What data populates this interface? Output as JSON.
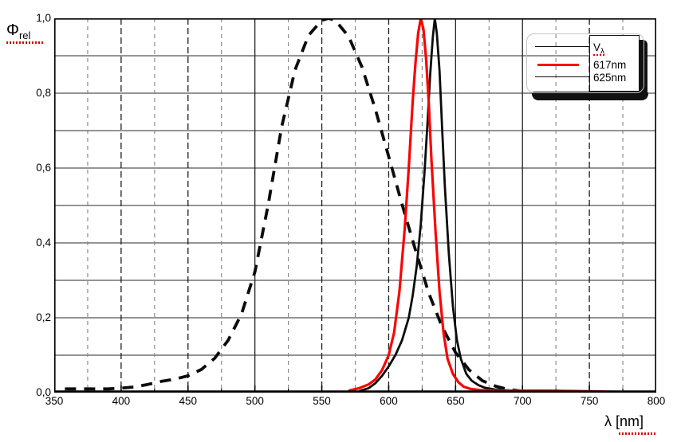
{
  "chart_data": {
    "type": "line",
    "title": "",
    "xlabel": "λ [nm]",
    "ylabel": "Φrel",
    "xlim": [
      350,
      800
    ],
    "ylim": [
      0.0,
      1.0
    ],
    "grid_on": true,
    "y_gridlines_every": 0.1,
    "x_gridlines_every_nm": 25,
    "legend_position": "top-right",
    "x_tick_labels": [
      "350",
      "400",
      "450",
      "500",
      "550",
      "600",
      "650",
      "700",
      "750",
      "800"
    ],
    "x_major_ticks": [
      350,
      400,
      450,
      500,
      550,
      600,
      650,
      700,
      750,
      800
    ],
    "y_tick_labels": [
      "1,0",
      "0,8",
      "0,6",
      "0,4",
      "0,2",
      "0,0"
    ],
    "y_ticks": [
      1.0,
      0.8,
      0.6,
      0.4,
      0.2,
      0.0
    ],
    "vline_styles": [
      {
        "lambda": 375,
        "style": "minor"
      },
      {
        "lambda": 400,
        "style": "major"
      },
      {
        "lambda": 425,
        "style": "minor"
      },
      {
        "lambda": 450,
        "style": "major"
      },
      {
        "lambda": 475,
        "style": "minor"
      },
      {
        "lambda": 500,
        "style": "solid"
      },
      {
        "lambda": 525,
        "style": "minor"
      },
      {
        "lambda": 550,
        "style": "major"
      },
      {
        "lambda": 575,
        "style": "minor"
      },
      {
        "lambda": 600,
        "style": "major"
      },
      {
        "lambda": 625,
        "style": "minor"
      },
      {
        "lambda": 650,
        "style": "solid"
      },
      {
        "lambda": 675,
        "style": "minor"
      },
      {
        "lambda": 700,
        "style": "solid"
      },
      {
        "lambda": 725,
        "style": "minor"
      },
      {
        "lambda": 750,
        "style": "major"
      },
      {
        "lambda": 775,
        "style": "minor"
      }
    ],
    "series": [
      {
        "name": "V_lambda",
        "legend_label": "Vλ",
        "color": "#0c0c0c",
        "line_style": "dashed",
        "line_width": 3.8,
        "peak_nm": 555,
        "points": [
          [
            358,
            0.01
          ],
          [
            370,
            0.01
          ],
          [
            380,
            0.01
          ],
          [
            390,
            0.01
          ],
          [
            400,
            0.012
          ],
          [
            410,
            0.015
          ],
          [
            420,
            0.022
          ],
          [
            430,
            0.03
          ],
          [
            440,
            0.036
          ],
          [
            450,
            0.045
          ],
          [
            460,
            0.062
          ],
          [
            470,
            0.092
          ],
          [
            480,
            0.14
          ],
          [
            490,
            0.21
          ],
          [
            500,
            0.323
          ],
          [
            510,
            0.503
          ],
          [
            520,
            0.71
          ],
          [
            530,
            0.862
          ],
          [
            540,
            0.954
          ],
          [
            550,
            0.995
          ],
          [
            555,
            1.0
          ],
          [
            560,
            0.995
          ],
          [
            570,
            0.952
          ],
          [
            580,
            0.87
          ],
          [
            590,
            0.757
          ],
          [
            600,
            0.631
          ],
          [
            610,
            0.503
          ],
          [
            620,
            0.381
          ],
          [
            630,
            0.265
          ],
          [
            640,
            0.175
          ],
          [
            650,
            0.107
          ],
          [
            660,
            0.061
          ],
          [
            670,
            0.032
          ],
          [
            680,
            0.017
          ],
          [
            690,
            0.008
          ],
          [
            700,
            0.004
          ],
          [
            706,
            0.002
          ]
        ]
      },
      {
        "name": "led_625nm",
        "legend_label": "625nm",
        "color": "#0c0c0c",
        "line_style": "solid",
        "line_width": 2.8,
        "peak_nm": 634,
        "points": [
          [
            578,
            0.004
          ],
          [
            585,
            0.012
          ],
          [
            590,
            0.025
          ],
          [
            595,
            0.045
          ],
          [
            600,
            0.07
          ],
          [
            605,
            0.1
          ],
          [
            610,
            0.14
          ],
          [
            615,
            0.2
          ],
          [
            618,
            0.26
          ],
          [
            621,
            0.34
          ],
          [
            624,
            0.45
          ],
          [
            627,
            0.6
          ],
          [
            629,
            0.72
          ],
          [
            631,
            0.85
          ],
          [
            633,
            0.95
          ],
          [
            634.5,
            1.0
          ],
          [
            636,
            0.96
          ],
          [
            638,
            0.86
          ],
          [
            640,
            0.7
          ],
          [
            642,
            0.55
          ],
          [
            645,
            0.37
          ],
          [
            648,
            0.23
          ],
          [
            651,
            0.14
          ],
          [
            654,
            0.09
          ],
          [
            658,
            0.05
          ],
          [
            662,
            0.032
          ],
          [
            667,
            0.02
          ],
          [
            672,
            0.013
          ],
          [
            680,
            0.008
          ],
          [
            690,
            0.006
          ],
          [
            702,
            0.005
          ],
          [
            716,
            0.004
          ],
          [
            730,
            0.004
          ],
          [
            745,
            0.003
          ],
          [
            755,
            0.002
          ],
          [
            763,
            0.001
          ]
        ]
      },
      {
        "name": "led_617nm",
        "legend_label": "617nm",
        "color": "#fa0202",
        "line_style": "solid",
        "line_width": 3.2,
        "peak_nm": 624,
        "points": [
          [
            570,
            0.005
          ],
          [
            578,
            0.012
          ],
          [
            585,
            0.022
          ],
          [
            590,
            0.035
          ],
          [
            595,
            0.06
          ],
          [
            600,
            0.1
          ],
          [
            604,
            0.16
          ],
          [
            608,
            0.27
          ],
          [
            612,
            0.44
          ],
          [
            615,
            0.6
          ],
          [
            618,
            0.78
          ],
          [
            620,
            0.88
          ],
          [
            622,
            0.96
          ],
          [
            624,
            1.0
          ],
          [
            626,
            0.97
          ],
          [
            628,
            0.89
          ],
          [
            630,
            0.77
          ],
          [
            632,
            0.62
          ],
          [
            635,
            0.43
          ],
          [
            638,
            0.27
          ],
          [
            641,
            0.16
          ],
          [
            644,
            0.09
          ],
          [
            648,
            0.05
          ],
          [
            652,
            0.028
          ],
          [
            656,
            0.016
          ],
          [
            661,
            0.01
          ],
          [
            668,
            0.007
          ],
          [
            680,
            0.005
          ],
          [
            700,
            0.005
          ],
          [
            720,
            0.005
          ],
          [
            740,
            0.004
          ],
          [
            758,
            0.003
          ],
          [
            772,
            0.002
          ],
          [
            780,
            0.001
          ]
        ]
      }
    ]
  },
  "axis_titles": {
    "y_main": "Φ",
    "y_sub": "rel",
    "x_lambda": "λ",
    "x_bracket": "[nm]"
  },
  "legend": {
    "entry1_main": "V",
    "entry1_sub": "λ",
    "entry2": "617nm",
    "entry3": "625nm"
  },
  "colors": {
    "background": "#ffffff",
    "axis": "#000000",
    "grid_h": "#2a2a2a",
    "grid_major": "#1c1c1c",
    "grid_minor": "#828282",
    "curve_red": "#fa0202",
    "curve_black": "#0c0c0c",
    "spellcheck_red": "#e00000",
    "legend_shadow": "#111111"
  }
}
